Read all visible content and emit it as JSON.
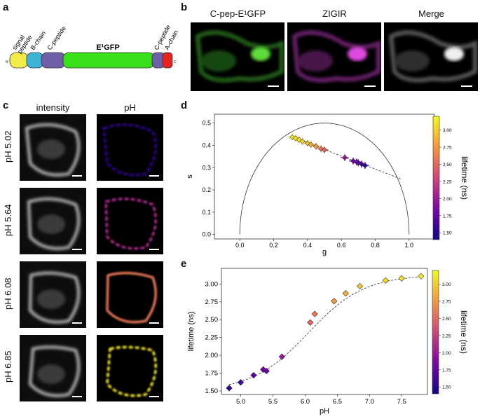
{
  "panels": {
    "a": "a",
    "b": "b",
    "c": "c",
    "d": "d",
    "e": "e"
  },
  "construct": {
    "signal_peptide": "signal\npeptide",
    "b_chain": "B-chain",
    "c_peptide_1": "C-peptide",
    "gfp_label": "E¹GFP",
    "c_peptide_2": "C-peptide",
    "a_chain": "A-chain",
    "n_term": "N",
    "c_term": "C",
    "colors": {
      "signal": "#f2ec4b",
      "bchain": "#3fb3d6",
      "cpep": "#6f5fa8",
      "gfp": "#38e01a",
      "achain": "#e8231f"
    }
  },
  "panel_b": {
    "headers": [
      "C-pep-E¹GFP",
      "ZIGIR",
      "Merge"
    ]
  },
  "panel_c": {
    "col_headers": [
      "intensity",
      "pH"
    ],
    "rows": [
      "pH 5.02",
      "pH 5.64",
      "pH 6.08",
      "pH 6.85"
    ]
  },
  "chart_data": [
    {
      "type": "scatter",
      "panel": "d",
      "xlabel": "g",
      "ylabel": "s",
      "xlim": [
        -0.15,
        1.15
      ],
      "ylim": [
        -0.02,
        0.54
      ],
      "xticks": [
        "0.0",
        "0.2",
        "0.4",
        "0.6",
        "0.8",
        "1.0"
      ],
      "yticks": [
        "0.0",
        "0.1",
        "0.2",
        "0.3",
        "0.4",
        "0.5"
      ],
      "colorbar_label": "lifetime (ns)",
      "colorbar_ticks": [
        "1.50",
        "1.75",
        "2.00",
        "2.25",
        "2.50",
        "2.75",
        "3.00"
      ],
      "colorbar_range": [
        1.4,
        3.2
      ],
      "universal_circle": true,
      "fit_line": {
        "x": [
          0.3,
          0.95
        ],
        "y": [
          0.44,
          0.25
        ]
      },
      "points": [
        {
          "g": 0.31,
          "s": 0.437,
          "lifetime": 3.12
        },
        {
          "g": 0.33,
          "s": 0.432,
          "lifetime": 3.1
        },
        {
          "g": 0.35,
          "s": 0.425,
          "lifetime": 3.08
        },
        {
          "g": 0.37,
          "s": 0.418,
          "lifetime": 3.05
        },
        {
          "g": 0.4,
          "s": 0.41,
          "lifetime": 2.97
        },
        {
          "g": 0.42,
          "s": 0.404,
          "lifetime": 2.87
        },
        {
          "g": 0.45,
          "s": 0.396,
          "lifetime": 2.76
        },
        {
          "g": 0.48,
          "s": 0.385,
          "lifetime": 2.58
        },
        {
          "g": 0.5,
          "s": 0.38,
          "lifetime": 2.46
        },
        {
          "g": 0.62,
          "s": 0.345,
          "lifetime": 1.98
        },
        {
          "g": 0.67,
          "s": 0.33,
          "lifetime": 1.8
        },
        {
          "g": 0.69,
          "s": 0.326,
          "lifetime": 1.78
        },
        {
          "g": 0.7,
          "s": 0.322,
          "lifetime": 1.72
        },
        {
          "g": 0.72,
          "s": 0.316,
          "lifetime": 1.62
        },
        {
          "g": 0.74,
          "s": 0.31,
          "lifetime": 1.54
        }
      ]
    },
    {
      "type": "line",
      "panel": "e",
      "xlabel": "pH",
      "ylabel": "lifetime (ns)",
      "xlim": [
        4.7,
        7.9
      ],
      "ylim": [
        1.45,
        3.22
      ],
      "xticks": [
        "5.0",
        "5.5",
        "6.0",
        "6.5",
        "7.0",
        "7.5"
      ],
      "yticks": [
        "1.50",
        "1.75",
        "2.00",
        "2.25",
        "2.50",
        "2.75",
        "3.00"
      ],
      "colorbar_label": "lifetime (ns)",
      "colorbar_ticks": [
        "1.50",
        "1.75",
        "2.00",
        "2.25",
        "2.50",
        "2.75",
        "3.00"
      ],
      "colorbar_range": [
        1.4,
        3.2
      ],
      "points": [
        {
          "pH": 4.82,
          "lifetime": 1.54
        },
        {
          "pH": 5.0,
          "lifetime": 1.62
        },
        {
          "pH": 5.2,
          "lifetime": 1.72
        },
        {
          "pH": 5.35,
          "lifetime": 1.8
        },
        {
          "pH": 5.4,
          "lifetime": 1.78
        },
        {
          "pH": 5.64,
          "lifetime": 1.98
        },
        {
          "pH": 6.08,
          "lifetime": 2.46
        },
        {
          "pH": 6.15,
          "lifetime": 2.58
        },
        {
          "pH": 6.45,
          "lifetime": 2.76
        },
        {
          "pH": 6.63,
          "lifetime": 2.87
        },
        {
          "pH": 6.85,
          "lifetime": 2.97
        },
        {
          "pH": 7.25,
          "lifetime": 3.05
        },
        {
          "pH": 7.5,
          "lifetime": 3.08
        },
        {
          "pH": 7.8,
          "lifetime": 3.11
        }
      ]
    }
  ]
}
